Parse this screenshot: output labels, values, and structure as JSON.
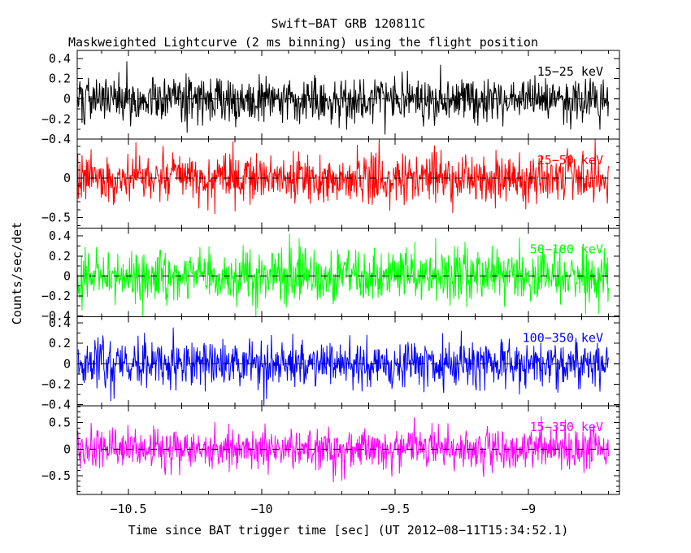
{
  "header": {
    "title": "Swift−BAT GRB 120811C",
    "subtitle": "Maskweighted Lightcurve (2 ms binning) using the flight position"
  },
  "axes": {
    "x_label": "Time since BAT trigger time [sec] (UT 2012−08−11T15:34:52.1)",
    "y_label": "Counts/sec/det"
  },
  "chart_data": {
    "type": "line",
    "title": "Swift−BAT GRB 120811C",
    "subtitle": "Maskweighted Lightcurve (2 ms binning) using the flight position",
    "xlabel": "Time since BAT trigger time [sec] (UT 2012−08−11T15:34:52.1)",
    "ylabel": "Counts/sec/det",
    "grid": false,
    "xlim": [
      -10.692,
      -8.659
    ],
    "x_major_ticks": [
      {
        "v": -10.5,
        "label": "−10.5"
      },
      {
        "v": -10.0,
        "label": "−10"
      },
      {
        "v": -9.5,
        "label": "−9.5"
      },
      {
        "v": -9.0,
        "label": "−9"
      }
    ],
    "x_minor_step": 0.1,
    "x_major_step": 0.5,
    "binning_sec": 0.002,
    "data_t_start": -10.69,
    "data_t_end": -8.698,
    "zero_line_style": "black dashed line at y=0 in every panel",
    "description": "Five stacked mask-weighted count-rate panels showing background noise fluctuating about zero; no burst feature inside the plotted window.",
    "panels": [
      {
        "band": "15−25 keV",
        "color": "#000000",
        "ylim": [
          -0.4,
          0.48
        ],
        "yticks": [
          {
            "v": 0.4,
            "label": "0.4"
          },
          {
            "v": 0.2,
            "label": "0.2"
          },
          {
            "v": 0,
            "label": "0"
          },
          {
            "v": -0.2,
            "label": "−0.2"
          },
          {
            "v": -0.4,
            "label": "−0.4"
          }
        ],
        "y_major_step": 0.2,
        "y_minor_step": 0.1,
        "noise_mean": 0,
        "noise_sigma": 0.115
      },
      {
        "band": "25−50 keV",
        "color": "#ff0000",
        "ylim": [
          -0.63,
          0.49
        ],
        "yticks": [
          {
            "v": 0,
            "label": "0"
          },
          {
            "v": -0.5,
            "label": "−0.5"
          }
        ],
        "y_major_step": 0.5,
        "y_minor_step": 0.1,
        "noise_mean": 0,
        "noise_sigma": 0.15
      },
      {
        "band": "50−100 keV",
        "color": "#00ff00",
        "ylim": [
          -0.41,
          0.48
        ],
        "yticks": [
          {
            "v": 0.4,
            "label": "0.4"
          },
          {
            "v": 0.2,
            "label": "0.2"
          },
          {
            "v": 0,
            "label": "0"
          },
          {
            "v": -0.2,
            "label": "−0.2"
          },
          {
            "v": -0.4,
            "label": "−0.4"
          }
        ],
        "y_major_step": 0.2,
        "y_minor_step": 0.1,
        "noise_mean": 0,
        "noise_sigma": 0.125
      },
      {
        "band": "100−350 keV",
        "color": "#0000ff",
        "ylim": [
          -0.41,
          0.46
        ],
        "yticks": [
          {
            "v": 0.4,
            "label": "0.4"
          },
          {
            "v": 0.2,
            "label": "0.2"
          },
          {
            "v": 0,
            "label": "0"
          },
          {
            "v": -0.2,
            "label": "−0.2"
          },
          {
            "v": -0.4,
            "label": "−0.4"
          }
        ],
        "y_major_step": 0.2,
        "y_minor_step": 0.1,
        "noise_mean": 0,
        "noise_sigma": 0.12
      },
      {
        "band": "15−350 keV",
        "color": "#ff00ff",
        "ylim": [
          -0.85,
          0.82
        ],
        "yticks": [
          {
            "v": 0.5,
            "label": "0.5"
          },
          {
            "v": 0,
            "label": "0"
          },
          {
            "v": -0.5,
            "label": "−0.5"
          }
        ],
        "y_major_step": 0.5,
        "y_minor_step": 0.1,
        "noise_mean": 0,
        "noise_sigma": 0.2
      }
    ]
  }
}
